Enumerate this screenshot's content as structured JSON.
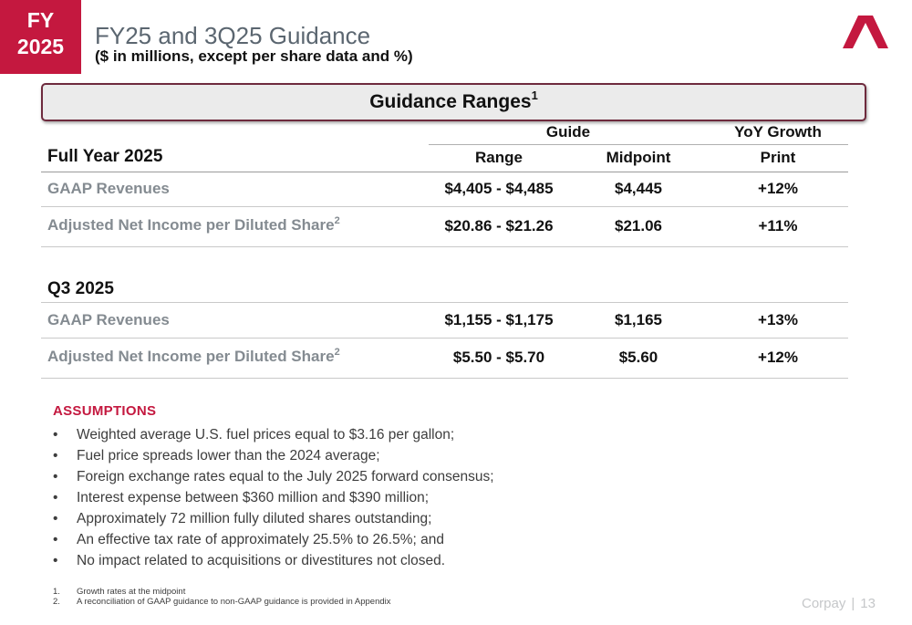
{
  "badge": {
    "line1": "FY",
    "line2": "2025"
  },
  "header": {
    "title": "FY25 and 3Q25 Guidance",
    "subtitle": "($ in millions, except per share data and %)"
  },
  "banner": {
    "title": "Guidance Ranges",
    "footnote_ref": "1"
  },
  "table": {
    "group_headers": {
      "guide": "Guide",
      "yoy": "YoY Growth"
    },
    "columns": {
      "range": "Range",
      "midpoint": "Midpoint",
      "print": "Print"
    },
    "sections": [
      {
        "title": "Full Year 2025",
        "rows": [
          {
            "label": "GAAP Revenues",
            "sup": "",
            "range": "$4,405 - $4,485",
            "midpoint": "$4,445",
            "print": "+12%"
          },
          {
            "label": "Adjusted Net Income per Diluted Share",
            "sup": "2",
            "range": "$20.86 - $21.26",
            "midpoint": "$21.06",
            "print": "+11%"
          }
        ]
      },
      {
        "title": "Q3 2025",
        "rows": [
          {
            "label": "GAAP Revenues",
            "sup": "",
            "range": "$1,155 - $1,175",
            "midpoint": "$1,165",
            "print": "+13%"
          },
          {
            "label": "Adjusted Net Income per Diluted Share",
            "sup": "2",
            "range": "$5.50 - $5.70",
            "midpoint": "$5.60",
            "print": "+12%"
          }
        ]
      }
    ]
  },
  "assumptions": {
    "title": "ASSUMPTIONS",
    "bullet_char": "•",
    "items": [
      "Weighted average U.S. fuel prices equal to $3.16 per gallon;",
      "Fuel price spreads lower than the 2024 average;",
      "Foreign exchange rates equal to the July 2025 forward consensus;",
      "Interest expense between $360 million and $390 million;",
      "Approximately 72 million fully diluted shares outstanding;",
      "An effective tax rate of approximately 25.5% to 26.5%; and",
      "No impact related to acquisitions or divestitures not closed."
    ]
  },
  "footnotes": [
    {
      "num": "1.",
      "text": "Growth rates at the midpoint"
    },
    {
      "num": "2.",
      "text": "A reconciliation of GAAP guidance to non-GAAP guidance is provided in Appendix"
    }
  ],
  "footer": {
    "brand": "Corpay",
    "separator": "|",
    "page": "13"
  },
  "colors": {
    "accent": "#c4183f",
    "banner_border": "#6e2a3d",
    "muted_label": "#848b91"
  },
  "icons": {
    "logo": "corpay-logo-icon"
  }
}
